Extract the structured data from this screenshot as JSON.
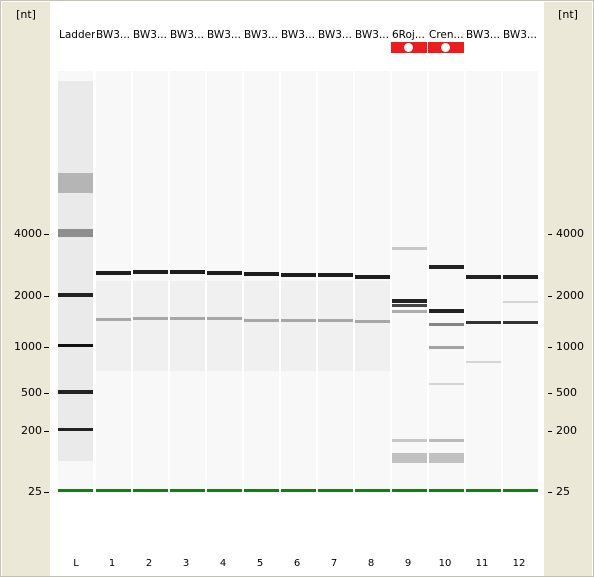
{
  "axis": {
    "unit": "[nt]",
    "ticks": [
      {
        "label": "4000",
        "value": 4000
      },
      {
        "label": "2000",
        "value": 2000
      },
      {
        "label": "1000",
        "value": 1000
      },
      {
        "label": "500",
        "value": 500
      },
      {
        "label": "200",
        "value": 200
      },
      {
        "label": "25",
        "value": 25
      }
    ]
  },
  "marker_color": "#1a7a1a",
  "lanes": [
    {
      "title": "Ladder",
      "number": "L",
      "flag": false
    },
    {
      "title": "BW3...",
      "number": "1",
      "flag": false
    },
    {
      "title": "BW3...",
      "number": "2",
      "flag": false
    },
    {
      "title": "BW3...",
      "number": "3",
      "flag": false
    },
    {
      "title": "BW3...",
      "number": "4",
      "flag": false
    },
    {
      "title": "BW3...",
      "number": "5",
      "flag": false
    },
    {
      "title": "BW3...",
      "number": "6",
      "flag": false
    },
    {
      "title": "BW3...",
      "number": "7",
      "flag": false
    },
    {
      "title": "BW3...",
      "number": "8",
      "flag": false
    },
    {
      "title": "6Roj...",
      "number": "9",
      "flag": true
    },
    {
      "title": "Cren...",
      "number": "10",
      "flag": true
    },
    {
      "title": "BW3...",
      "number": "11",
      "flag": false
    },
    {
      "title": "BW3...",
      "number": "12",
      "flag": false
    }
  ]
}
